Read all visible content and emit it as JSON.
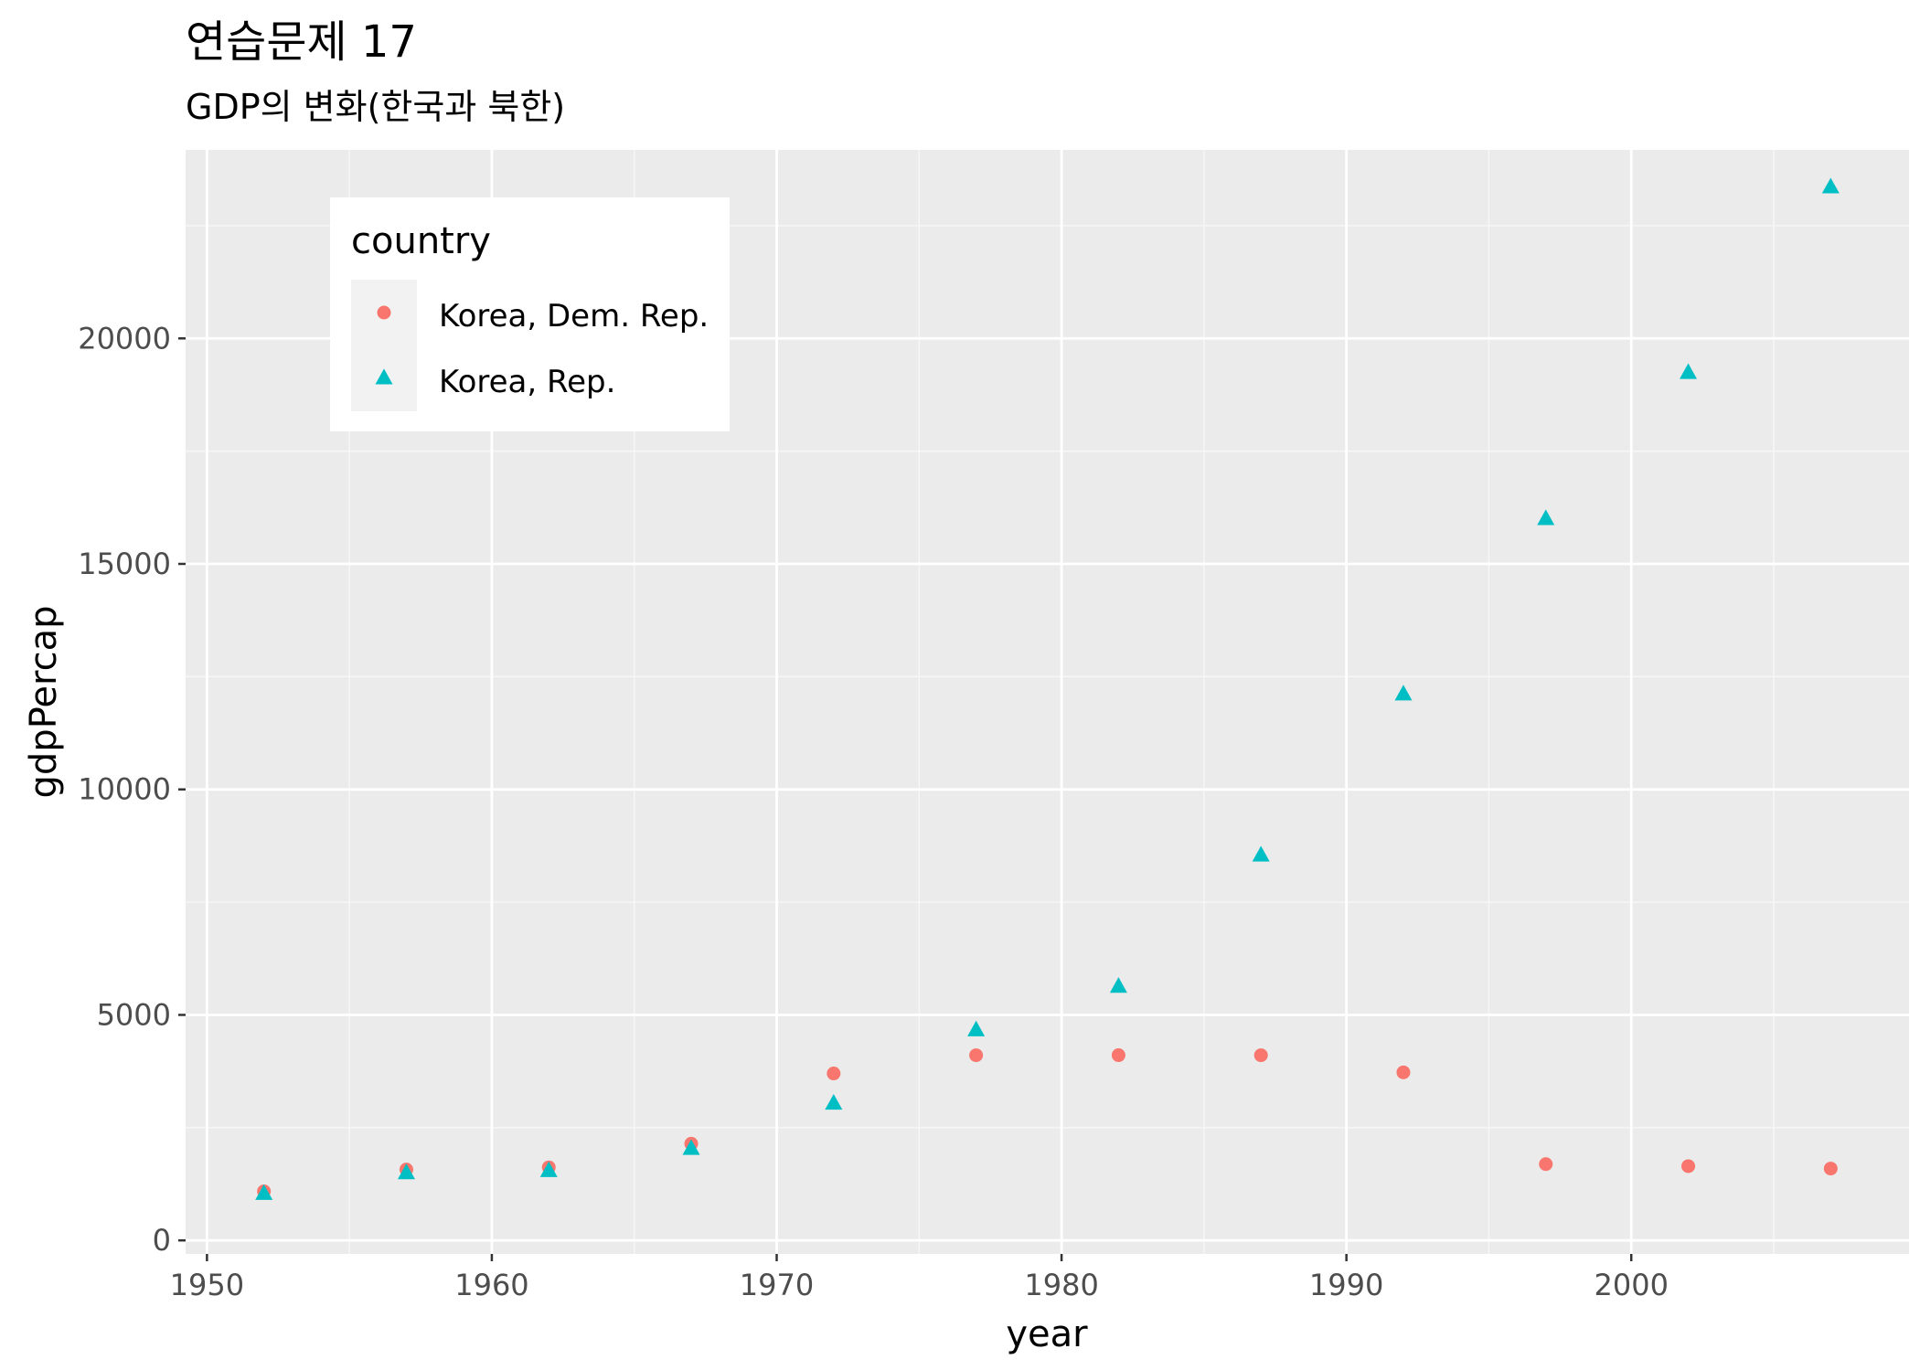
{
  "chart_data": {
    "type": "scatter",
    "title": "연습문제 17",
    "subtitle": "GDP의 변화(한국과 북한)",
    "xlabel": "year",
    "ylabel": "gdpPercap",
    "xlim": [
      1949.25,
      2009.75
    ],
    "ylim": [
      -300,
      24180
    ],
    "x_ticks": [
      1950,
      1960,
      1970,
      1980,
      1990,
      2000
    ],
    "x_tick_labels": [
      "1950",
      "1960",
      "1970",
      "1980",
      "1990",
      "2000"
    ],
    "y_ticks": [
      0,
      5000,
      10000,
      15000,
      20000
    ],
    "y_tick_labels": [
      "0",
      "5000",
      "10000",
      "15000",
      "20000"
    ],
    "grid": true,
    "legend": {
      "title": "country",
      "position": "top-left inside"
    },
    "series": [
      {
        "name": "Korea, Dem. Rep.",
        "marker": "circle",
        "color": "#F8766D",
        "x": [
          1952,
          1957,
          1962,
          1967,
          1972,
          1977,
          1982,
          1987,
          1992,
          1997,
          2002,
          2007
        ],
        "y": [
          1088,
          1572,
          1621,
          2144,
          3702,
          4106,
          4107,
          4106,
          3726,
          1691,
          1646,
          1593
        ]
      },
      {
        "name": "Korea, Rep.",
        "marker": "triangle",
        "color": "#00BFC4",
        "x": [
          1952,
          1957,
          1962,
          1967,
          1972,
          1977,
          1982,
          1987,
          1992,
          1997,
          2002,
          2007
        ],
        "y": [
          1031,
          1488,
          1536,
          2029,
          3031,
          4657,
          5623,
          8533,
          12104,
          15994,
          19234,
          23348
        ]
      }
    ]
  }
}
